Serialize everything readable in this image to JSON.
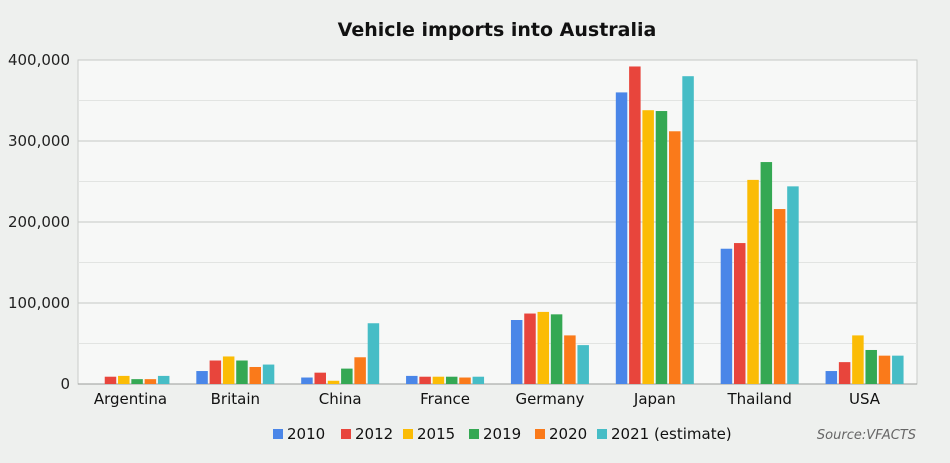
{
  "chart_data": {
    "type": "bar",
    "title": "Vehicle imports into Australia",
    "xlabel": "",
    "ylabel": "",
    "ylim": [
      0,
      400000
    ],
    "yticks": [
      0,
      100000,
      200000,
      300000,
      400000
    ],
    "ytick_labels": [
      "0",
      "100,000",
      "200,000",
      "300,000",
      "400,000"
    ],
    "grid": true,
    "legend_position": "bottom",
    "categories": [
      "Argentina",
      "Britain",
      "China",
      "France",
      "Germany",
      "Japan",
      "Thailand",
      "USA"
    ],
    "series": [
      {
        "name": "2010",
        "color": "#4a86e8",
        "values": [
          0,
          16000,
          8000,
          10000,
          79000,
          360000,
          167000,
          16000
        ]
      },
      {
        "name": "2012",
        "color": "#e8453c",
        "values": [
          9000,
          29000,
          14000,
          9000,
          87000,
          392000,
          174000,
          27000
        ]
      },
      {
        "name": "2015",
        "color": "#fbbc05",
        "values": [
          10000,
          34000,
          4000,
          9000,
          89000,
          338000,
          252000,
          60000
        ]
      },
      {
        "name": "2019",
        "color": "#34a853",
        "values": [
          6000,
          29000,
          19000,
          9000,
          86000,
          337000,
          274000,
          42000
        ]
      },
      {
        "name": "2020",
        "color": "#fa7a1a",
        "values": [
          6000,
          21000,
          33000,
          8000,
          60000,
          312000,
          216000,
          35000
        ]
      },
      {
        "name": "2021 (estimate)",
        "color": "#46bdc6",
        "values": [
          10000,
          24000,
          75000,
          9000,
          48000,
          380000,
          244000,
          35000
        ]
      }
    ],
    "source": "Source:VFACTS"
  }
}
